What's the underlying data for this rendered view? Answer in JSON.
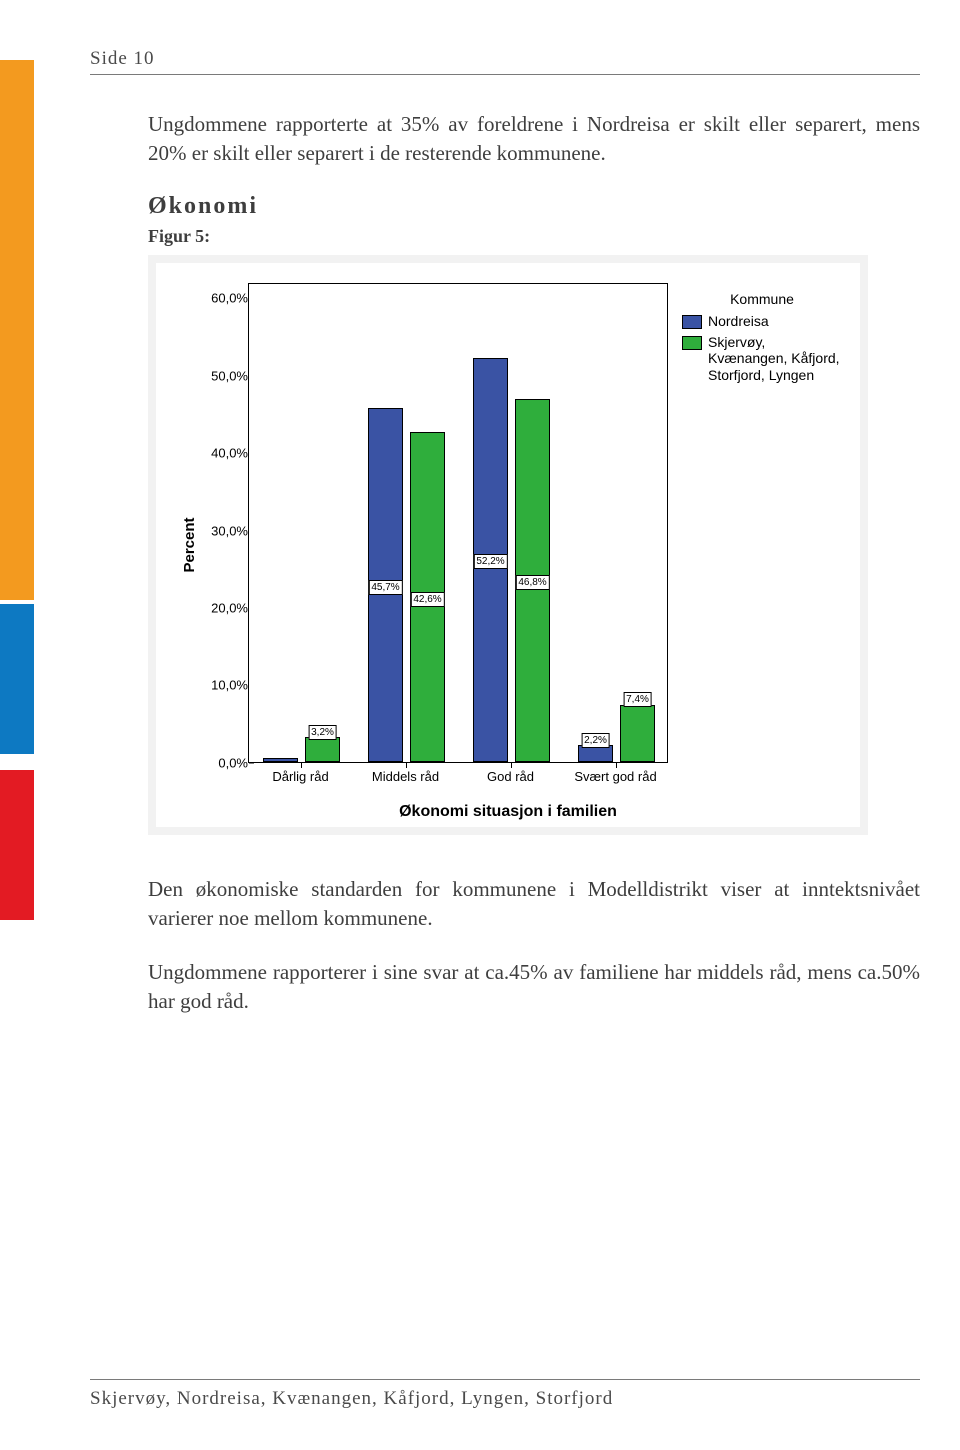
{
  "header": {
    "page_label": "Side 10"
  },
  "side_bars": {
    "orange": "#f39a1f",
    "blue": "#0d79c2",
    "red": "#e31b23"
  },
  "paragraphs": {
    "intro": "Ungdommene rapporterte at 35% av foreldrene i Nordreisa er skilt eller separert, mens 20% er skilt eller separert i de resterende kommunene.",
    "below_chart_1": "Den økonomiske standarden for kommunene i Modelldistrikt viser at inntektsnivået varierer noe mellom kommunene.",
    "below_chart_2": "Ungdommene rapporterer i sine svar at ca.45% av familiene har middels råd, mens ca.50% har god råd."
  },
  "section": {
    "title": "Økonomi",
    "figure_label": "Figur 5:"
  },
  "chart": {
    "type": "bar",
    "background_outer": "#f2f2f2",
    "background_inner": "#ffffff",
    "y_label": "Percent",
    "x_label": "Økonomi situasjon i familien",
    "y_label_fontsize": 15,
    "x_label_fontsize": 16,
    "tick_fontsize": 13,
    "bar_label_fontsize": 10,
    "ylim": [
      0,
      62
    ],
    "yticks": [
      0,
      10,
      20,
      30,
      40,
      50,
      60
    ],
    "ytick_labels": [
      "0,0%",
      "10,0%",
      "20,0%",
      "30,0%",
      "40,0%",
      "50,0%",
      "60,0%"
    ],
    "categories": [
      "Dårlig råd",
      "Middels råd",
      "God råd",
      "Svært god råd"
    ],
    "series": [
      {
        "name": "Nordreisa",
        "color": "#3a53a4",
        "values": [
          0.5,
          45.7,
          52.2,
          2.2
        ]
      },
      {
        "name": "Skjervøy, Kvænangen, Kåfjord, Storfjord, Lyngen",
        "color": "#2fae3c",
        "values": [
          3.2,
          42.6,
          46.8,
          7.4
        ]
      }
    ],
    "bar_labels": [
      {
        "series": 1,
        "cat": 0,
        "text": "3,2%"
      },
      {
        "series": 0,
        "cat": 1,
        "text": "45,7%"
      },
      {
        "series": 1,
        "cat": 1,
        "text": "42,6%"
      },
      {
        "series": 0,
        "cat": 2,
        "text": "52,2%"
      },
      {
        "series": 1,
        "cat": 2,
        "text": "46,8%"
      },
      {
        "series": 0,
        "cat": 3,
        "text": "2,2%"
      },
      {
        "series": 1,
        "cat": 3,
        "text": "7,4%"
      }
    ],
    "legend_title": "Kommune",
    "bar_border": "#000000",
    "group_gap_ratio": 0.26,
    "bar_gap_ratio": 0.06
  },
  "footer": {
    "text": "Skjervøy, Nordreisa, Kvænangen, Kåfjord, Lyngen, Storfjord"
  }
}
